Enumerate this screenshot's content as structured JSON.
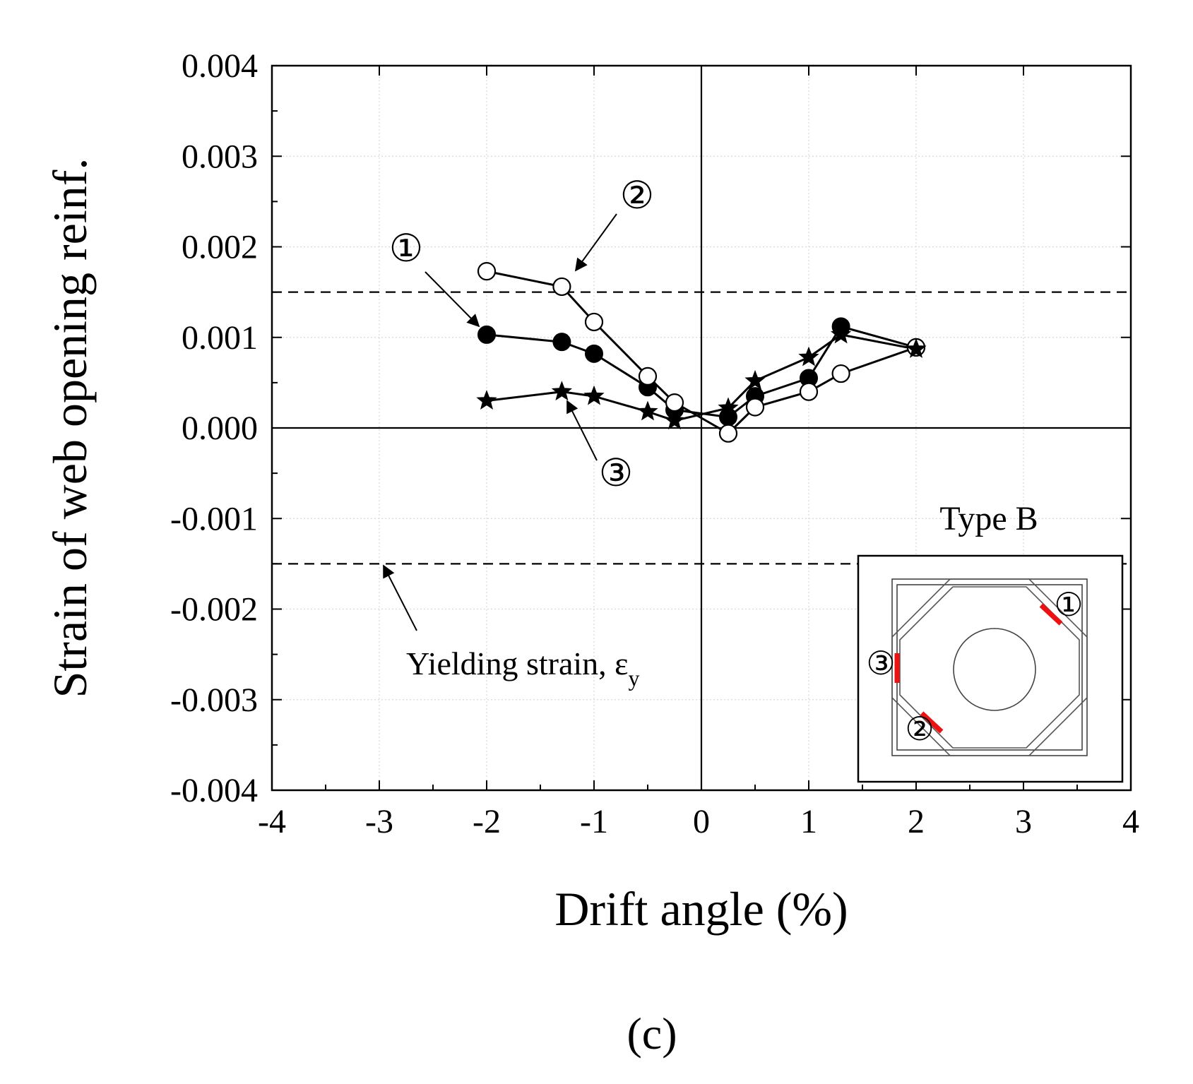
{
  "chart_data": {
    "type": "line",
    "xlabel": "Drift angle (%)",
    "ylabel": "Strain of web opening reinf.",
    "xlim": [
      -4,
      4
    ],
    "ylim": [
      -0.004,
      0.004
    ],
    "xticks": [
      -4,
      -3,
      -2,
      -1,
      0,
      1,
      2,
      3,
      4
    ],
    "xtick_labels": [
      "-4",
      "-3",
      "-2",
      "-1",
      "0",
      "1",
      "2",
      "3",
      "4"
    ],
    "yticks": [
      -0.004,
      -0.003,
      -0.002,
      -0.001,
      0,
      0.001,
      0.002,
      0.003,
      0.004
    ],
    "ytick_labels": [
      "-0.004",
      "-0.003",
      "-0.002",
      "-0.001",
      "0.000",
      "0.001",
      "0.002",
      "0.003",
      "0.004"
    ],
    "grid": true,
    "zero_lines": true,
    "series": [
      {
        "name": "①",
        "marker": "filled-circle",
        "x": [
          -2,
          -1.3,
          -1,
          -0.5,
          -0.25,
          0.25,
          0.5,
          1,
          1.3,
          2
        ],
        "y": [
          0.00103,
          0.00095,
          0.00082,
          0.00045,
          0.0002,
          0.00012,
          0.00035,
          0.00055,
          0.00112,
          0.00089
        ]
      },
      {
        "name": "②",
        "marker": "open-circle",
        "x": [
          -2,
          -1.3,
          -1,
          -0.5,
          -0.25,
          0.25,
          0.5,
          1,
          1.3,
          2
        ],
        "y": [
          0.00173,
          0.00156,
          0.00117,
          0.00057,
          0.00028,
          -6e-05,
          0.00023,
          0.0004,
          0.0006,
          0.00089
        ]
      },
      {
        "name": "③",
        "marker": "star",
        "x": [
          -2,
          -1.3,
          -1,
          -0.5,
          -0.25,
          0.25,
          0.5,
          1,
          1.3,
          2
        ],
        "y": [
          0.0003,
          0.0004,
          0.00035,
          0.00018,
          8e-05,
          0.00022,
          0.00052,
          0.00078,
          0.00103,
          0.00087
        ]
      }
    ],
    "yield_lines": [
      0.0015,
      -0.0015
    ],
    "annotations": {
      "label_1": "①",
      "label_2": "②",
      "label_3": "③",
      "yield_text": "Yielding strain, ε",
      "yield_subscript": "y"
    },
    "inset": {
      "title": "Type B",
      "marker_color": "#ee1111",
      "label_1": "①",
      "label_2": "②",
      "label_3": "③"
    }
  },
  "caption": "(c)"
}
